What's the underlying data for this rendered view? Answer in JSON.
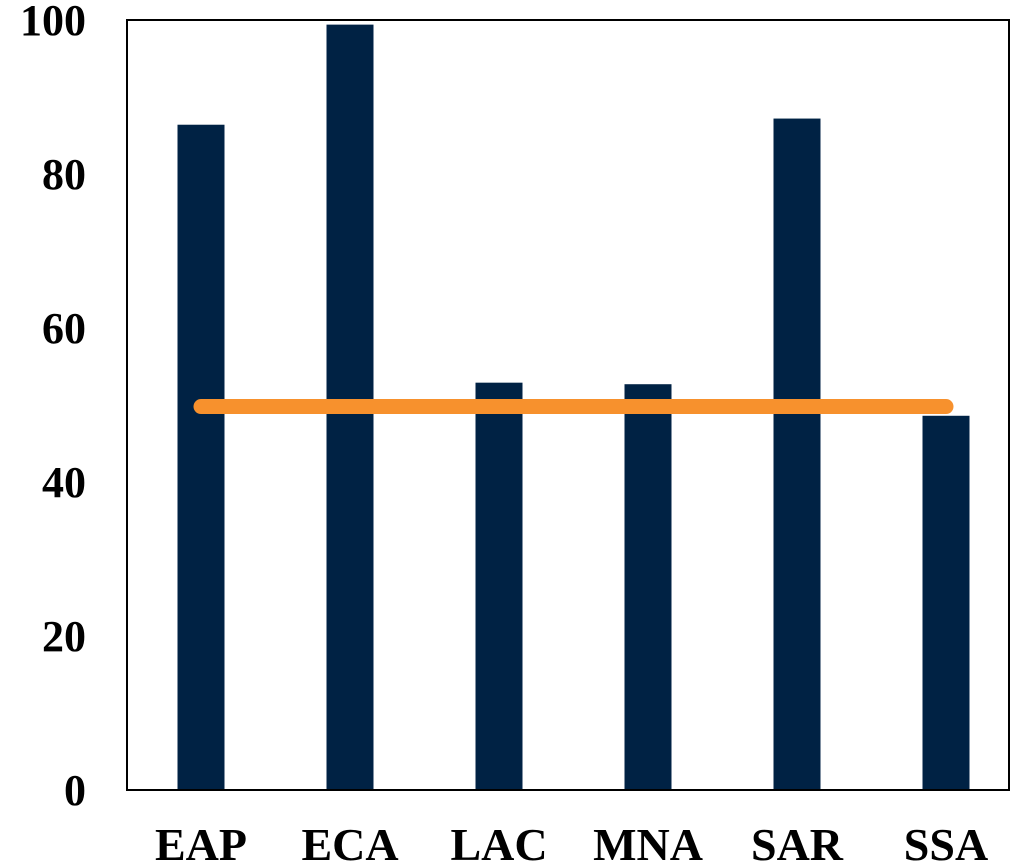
{
  "chart_data": {
    "type": "bar",
    "title": "",
    "xlabel": "",
    "ylabel": "",
    "categories": [
      "EAP",
      "ECA",
      "LAC",
      "MNA",
      "SAR",
      "SSA"
    ],
    "values": [
      86.4,
      99.4,
      52.9,
      52.7,
      87.2,
      48.6
    ],
    "reference_line": {
      "type": "horizontal",
      "value": 49.8,
      "color": "#f7912d"
    },
    "ylim": [
      0,
      100
    ],
    "yticks": [
      "0",
      "20",
      "40",
      "60",
      "80",
      "100"
    ],
    "bar_color": "#002244",
    "grid": false,
    "legend": "none"
  }
}
